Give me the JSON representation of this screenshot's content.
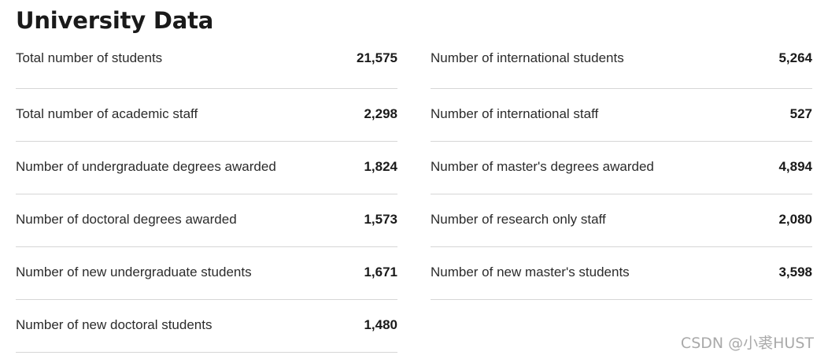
{
  "title": "University Data",
  "left_column": [
    {
      "label": "Total number of students",
      "value": "21,575"
    },
    {
      "label": "Total number of academic staff",
      "value": "2,298"
    },
    {
      "label": "Number of undergraduate degrees awarded",
      "value": "1,824"
    },
    {
      "label": "Number of doctoral degrees awarded",
      "value": "1,573"
    },
    {
      "label": "Number of new undergraduate students",
      "value": "1,671"
    },
    {
      "label": "Number of new doctoral students",
      "value": "1,480"
    }
  ],
  "right_column": [
    {
      "label": "Number of international students",
      "value": "5,264"
    },
    {
      "label": "Number of international staff",
      "value": "527"
    },
    {
      "label": "Number of master's degrees awarded",
      "value": "4,894"
    },
    {
      "label": "Number of research only staff",
      "value": "2,080"
    },
    {
      "label": "Number of new master's students",
      "value": "3,598"
    }
  ],
  "watermark": "CSDN @小裘HUST"
}
